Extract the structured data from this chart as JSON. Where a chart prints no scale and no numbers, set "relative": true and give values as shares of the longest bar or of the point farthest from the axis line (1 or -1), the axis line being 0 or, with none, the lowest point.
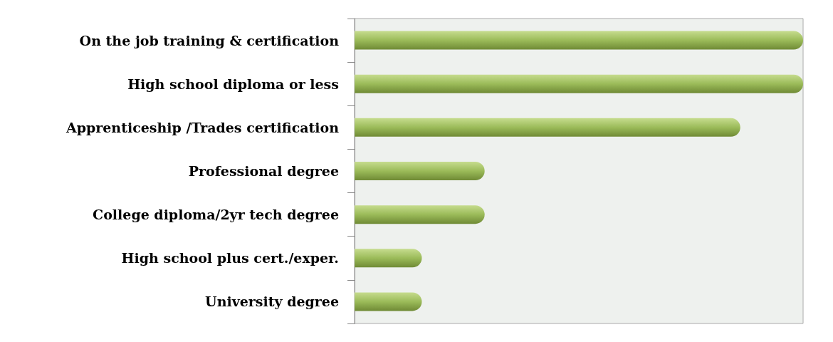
{
  "chart_data": {
    "type": "bar",
    "orientation": "horizontal",
    "relative": true,
    "categories": [
      "On the job training & certification",
      "High school diploma or less",
      "Apprenticeship /Trades certification",
      "Professional degree",
      "College diploma/2yr tech degree",
      "High school plus cert./exper.",
      "University degree"
    ],
    "values": [
      1,
      1,
      0.86,
      0.29,
      0.29,
      0.15,
      0.15
    ],
    "color": "#9bbb59"
  }
}
